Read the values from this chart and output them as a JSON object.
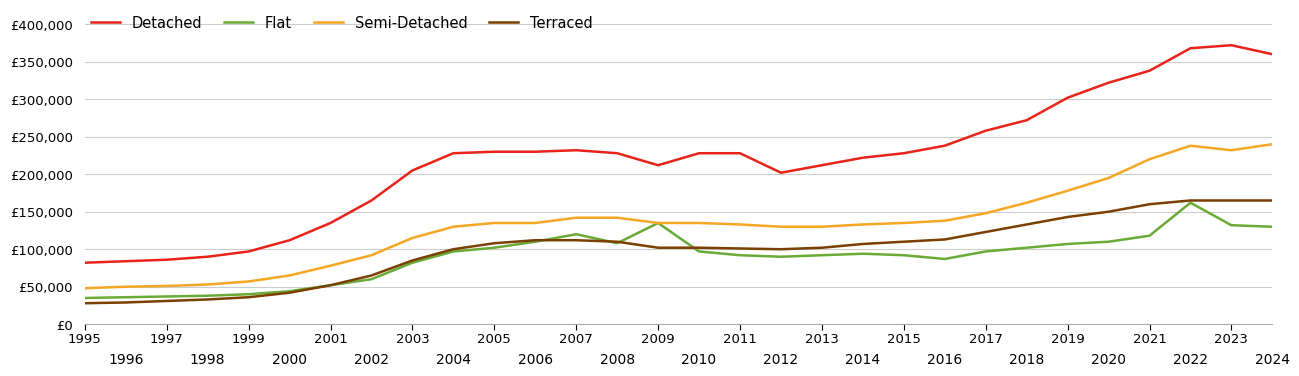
{
  "years": [
    1995,
    1996,
    1997,
    1998,
    1999,
    2000,
    2001,
    2002,
    2003,
    2004,
    2005,
    2006,
    2007,
    2008,
    2009,
    2010,
    2011,
    2012,
    2013,
    2014,
    2015,
    2016,
    2017,
    2018,
    2019,
    2020,
    2021,
    2022,
    2023,
    2024
  ],
  "detached": [
    82000,
    84000,
    86000,
    90000,
    97000,
    112000,
    135000,
    165000,
    205000,
    228000,
    230000,
    230000,
    232000,
    228000,
    212000,
    228000,
    228000,
    202000,
    212000,
    222000,
    228000,
    238000,
    258000,
    272000,
    302000,
    322000,
    338000,
    368000,
    372000,
    360000
  ],
  "flat": [
    35000,
    36000,
    37000,
    38000,
    40000,
    44000,
    52000,
    60000,
    82000,
    97000,
    102000,
    110000,
    120000,
    108000,
    135000,
    97000,
    92000,
    90000,
    92000,
    94000,
    92000,
    87000,
    97000,
    102000,
    107000,
    110000,
    118000,
    162000,
    132000,
    130000
  ],
  "semi_detached": [
    48000,
    50000,
    51000,
    53000,
    57000,
    65000,
    78000,
    92000,
    115000,
    130000,
    135000,
    135000,
    142000,
    142000,
    135000,
    135000,
    133000,
    130000,
    130000,
    133000,
    135000,
    138000,
    148000,
    162000,
    178000,
    195000,
    220000,
    238000,
    232000,
    240000
  ],
  "terraced": [
    28000,
    29000,
    31000,
    33000,
    36000,
    42000,
    52000,
    65000,
    85000,
    100000,
    108000,
    112000,
    112000,
    110000,
    102000,
    102000,
    101000,
    100000,
    102000,
    107000,
    110000,
    113000,
    123000,
    133000,
    143000,
    150000,
    160000,
    165000,
    165000,
    165000
  ],
  "colors": {
    "detached": "#e8231a",
    "flat": "#6aaa36",
    "semi_detached": "#f5a623",
    "terraced": "#7B3F00"
  },
  "ylim": [
    0,
    420000
  ],
  "yticks": [
    0,
    50000,
    100000,
    150000,
    200000,
    250000,
    300000,
    350000,
    400000
  ],
  "background_color": "#ffffff",
  "grid_color": "#cccccc",
  "line_width": 1.8,
  "odd_years": [
    1995,
    1997,
    1999,
    2001,
    2003,
    2005,
    2007,
    2009,
    2011,
    2013,
    2015,
    2017,
    2019,
    2021,
    2023
  ],
  "even_years": [
    1996,
    1998,
    2000,
    2002,
    2004,
    2006,
    2008,
    2010,
    2012,
    2014,
    2016,
    2018,
    2020,
    2022,
    2024
  ]
}
